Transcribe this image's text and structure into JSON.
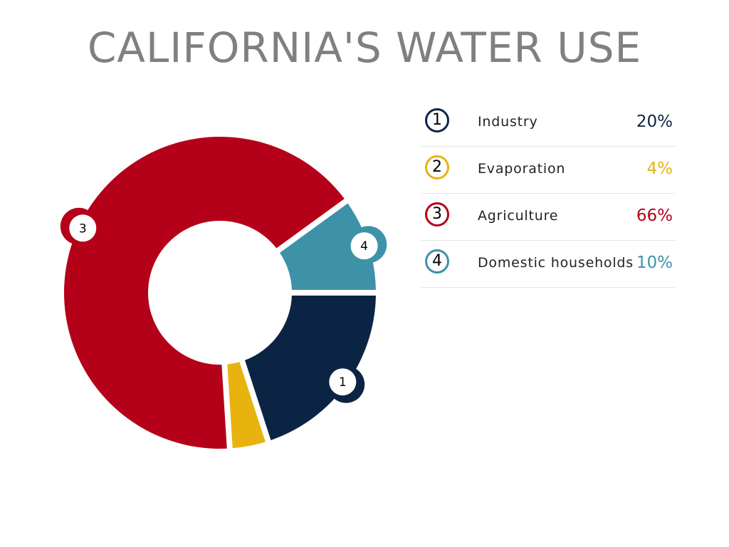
{
  "title": "CALIFORNIA'S WATER USE",
  "colors": {
    "industry": "#0c2444",
    "evaporation": "#e8b30f",
    "agriculture": "#b5001a",
    "domestic": "#3e92a8",
    "title": "#808080"
  },
  "chart_data": {
    "type": "pie",
    "variant": "donut",
    "title": "CALIFORNIA'S WATER USE",
    "slices": [
      {
        "number": "1",
        "label": "Industry",
        "value": 20,
        "display": "20%",
        "color": "#0c2444",
        "icon": "circled-number-1"
      },
      {
        "number": "2",
        "label": "Evaporation",
        "value": 4,
        "display": "4%",
        "color": "#e8b30f",
        "icon": "circled-number-2"
      },
      {
        "number": "3",
        "label": "Agriculture",
        "value": 66,
        "display": "66%",
        "color": "#b5001a",
        "icon": "circled-number-3"
      },
      {
        "number": "4",
        "label": "Domestic households",
        "value": 10,
        "display": "10%",
        "color": "#3e92a8",
        "icon": "circled-number-4"
      }
    ],
    "slice_order": "clockwise from 3 o'clock",
    "legend_position": "right",
    "slice_badges_shown_for": [
      "1",
      "3",
      "4"
    ]
  }
}
